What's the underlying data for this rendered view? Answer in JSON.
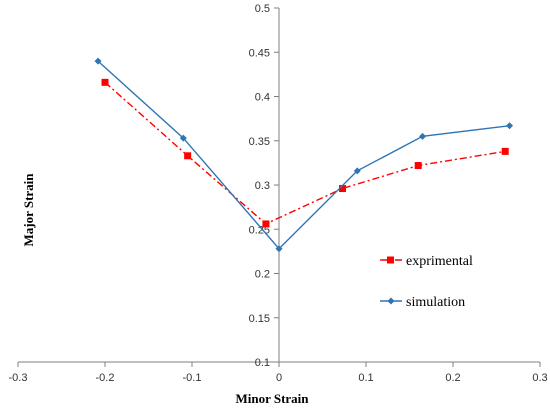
{
  "chart_data": {
    "type": "line",
    "title": "",
    "xlabel": "Minor Strain",
    "ylabel": "Major Strain",
    "xlim": [
      -0.3,
      0.3
    ],
    "ylim": [
      0.1,
      0.5
    ],
    "x_ticks": [
      -0.3,
      -0.2,
      -0.1,
      0,
      0.1,
      0.2,
      0.3
    ],
    "y_ticks": [
      0.1,
      0.15,
      0.2,
      0.25,
      0.3,
      0.35,
      0.4,
      0.45,
      0.5
    ],
    "x_tick_labels": [
      "-0.3",
      "-0.2",
      "-0.1",
      "0",
      "0.1",
      "0.2",
      "0.3"
    ],
    "y_tick_labels": [
      "0.1",
      "0.15",
      "0.2",
      "0.25",
      "0.3",
      "0.35",
      "0.4",
      "0.45",
      "0.5"
    ],
    "grid": false,
    "legend_position": "right",
    "series": [
      {
        "name": "exprimental",
        "color": "#ff0000",
        "line_style": "dash-dot",
        "marker": "square",
        "x": [
          -0.2,
          -0.105,
          -0.015,
          0.073,
          0.16,
          0.26
        ],
        "y": [
          0.416,
          0.333,
          0.256,
          0.296,
          0.322,
          0.338
        ]
      },
      {
        "name": "simulation",
        "color": "#2e75b6",
        "line_style": "solid",
        "marker": "diamond",
        "x": [
          -0.208,
          -0.11,
          0,
          0.09,
          0.165,
          0.265
        ],
        "y": [
          0.44,
          0.353,
          0.228,
          0.316,
          0.355,
          0.367
        ]
      }
    ]
  }
}
